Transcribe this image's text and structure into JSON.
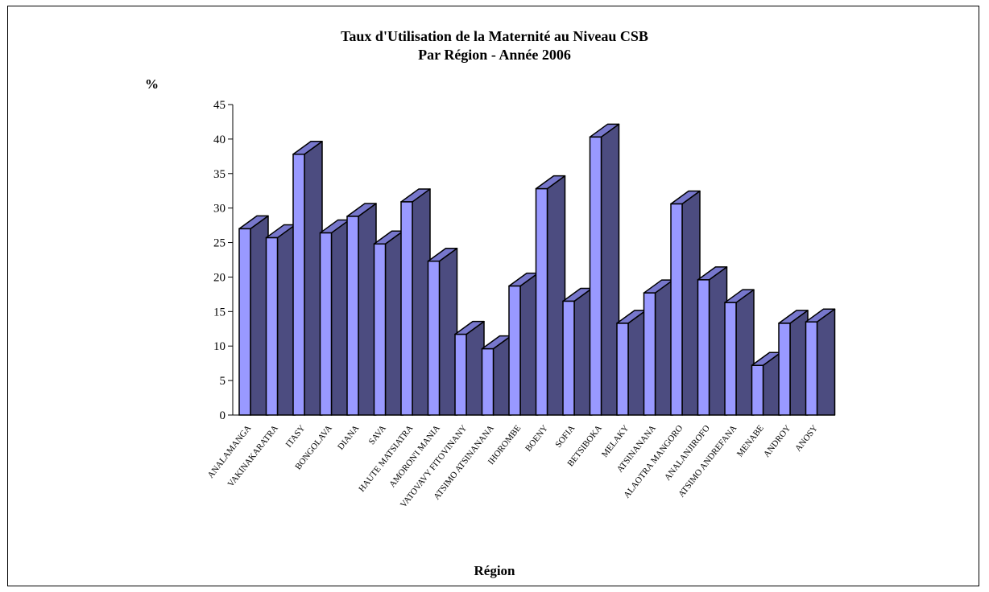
{
  "chart_data": {
    "type": "bar",
    "title": "Taux d'Utilisation de la Maternité au Niveau CSB",
    "subtitle": "Par Région - Année  2006",
    "ylabel": "%",
    "xlabel": "Région",
    "ylim": [
      0,
      45
    ],
    "yticks": [
      0,
      5,
      10,
      15,
      20,
      25,
      30,
      35,
      40,
      45
    ],
    "categories": [
      "ANALAMANGA",
      "VAKINAKARATRA",
      "ITASY",
      "BONGOLAVA",
      "DIANA",
      "SAVA",
      "HAUTE MATSIATRA",
      "AMORON'I MANIA",
      "VATOVAVY FITOVINANY",
      "ATSIMO ATSINANANA",
      "IHOROMBE",
      "BOENY",
      "SOFIA",
      "BETSIBOKA",
      "MELAKY",
      "ATSINANANA",
      "ALAOTRA MANGORO",
      "ANALANJIROFO",
      "ATSIMO ANDREFANA",
      "MENABE",
      "ANDROY",
      "ANOSY"
    ],
    "values": [
      27.0,
      25.7,
      37.8,
      26.4,
      28.8,
      24.8,
      30.9,
      22.3,
      11.7,
      9.6,
      18.7,
      32.8,
      16.5,
      40.3,
      13.3,
      17.7,
      30.6,
      19.6,
      16.3,
      7.2,
      13.3,
      13.5
    ],
    "grid": false,
    "legend": "none",
    "colors": {
      "front": "#9999ff",
      "side": "#4c4c80",
      "top": "#7777cc"
    }
  }
}
